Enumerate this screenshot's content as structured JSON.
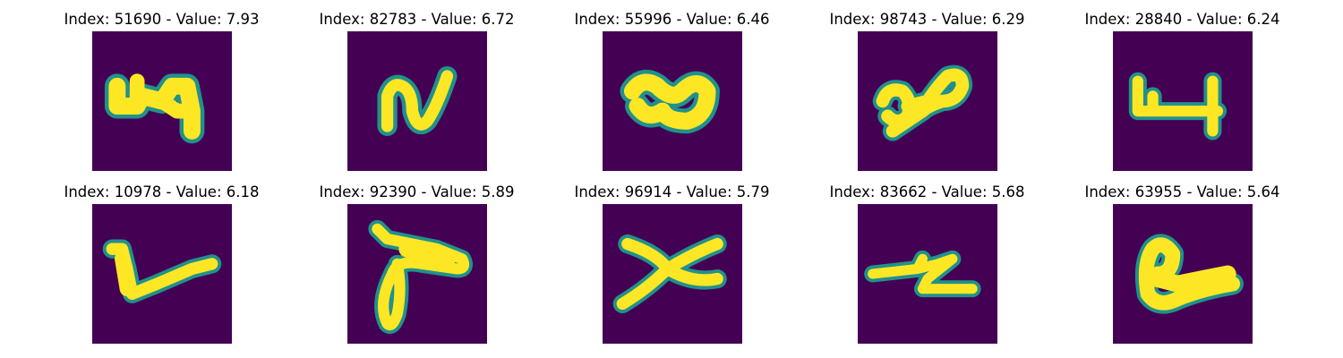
{
  "figure": {
    "panels": [
      {
        "title": "Index: 51690 - Value: 7.93",
        "glyph": "digit-4-like-blob"
      },
      {
        "title": "Index: 82783 - Value: 6.72",
        "glyph": "n-shaped-stroke"
      },
      {
        "title": "Index: 55996 - Value: 6.46",
        "glyph": "wave-blob"
      },
      {
        "title": "Index: 98743 - Value: 6.29",
        "glyph": "double-loop-stroke"
      },
      {
        "title": "Index: 28840 - Value: 6.24",
        "glyph": "bracket-shape"
      },
      {
        "title": "Index: 10978 - Value: 6.18",
        "glyph": "check-mark-stroke"
      },
      {
        "title": "Index: 92390 - Value: 5.89",
        "glyph": "loop-with-bar"
      },
      {
        "title": "Index: 96914 - Value: 5.79",
        "glyph": "x-shaped-stroke"
      },
      {
        "title": "Index: 83662 - Value: 5.68",
        "glyph": "z-like-stroke"
      },
      {
        "title": "Index: 63955 - Value: 5.64",
        "glyph": "hook-blob"
      }
    ],
    "colors": {
      "background": "#440154",
      "foreground": "#fde725",
      "edge": "#21918c"
    }
  }
}
